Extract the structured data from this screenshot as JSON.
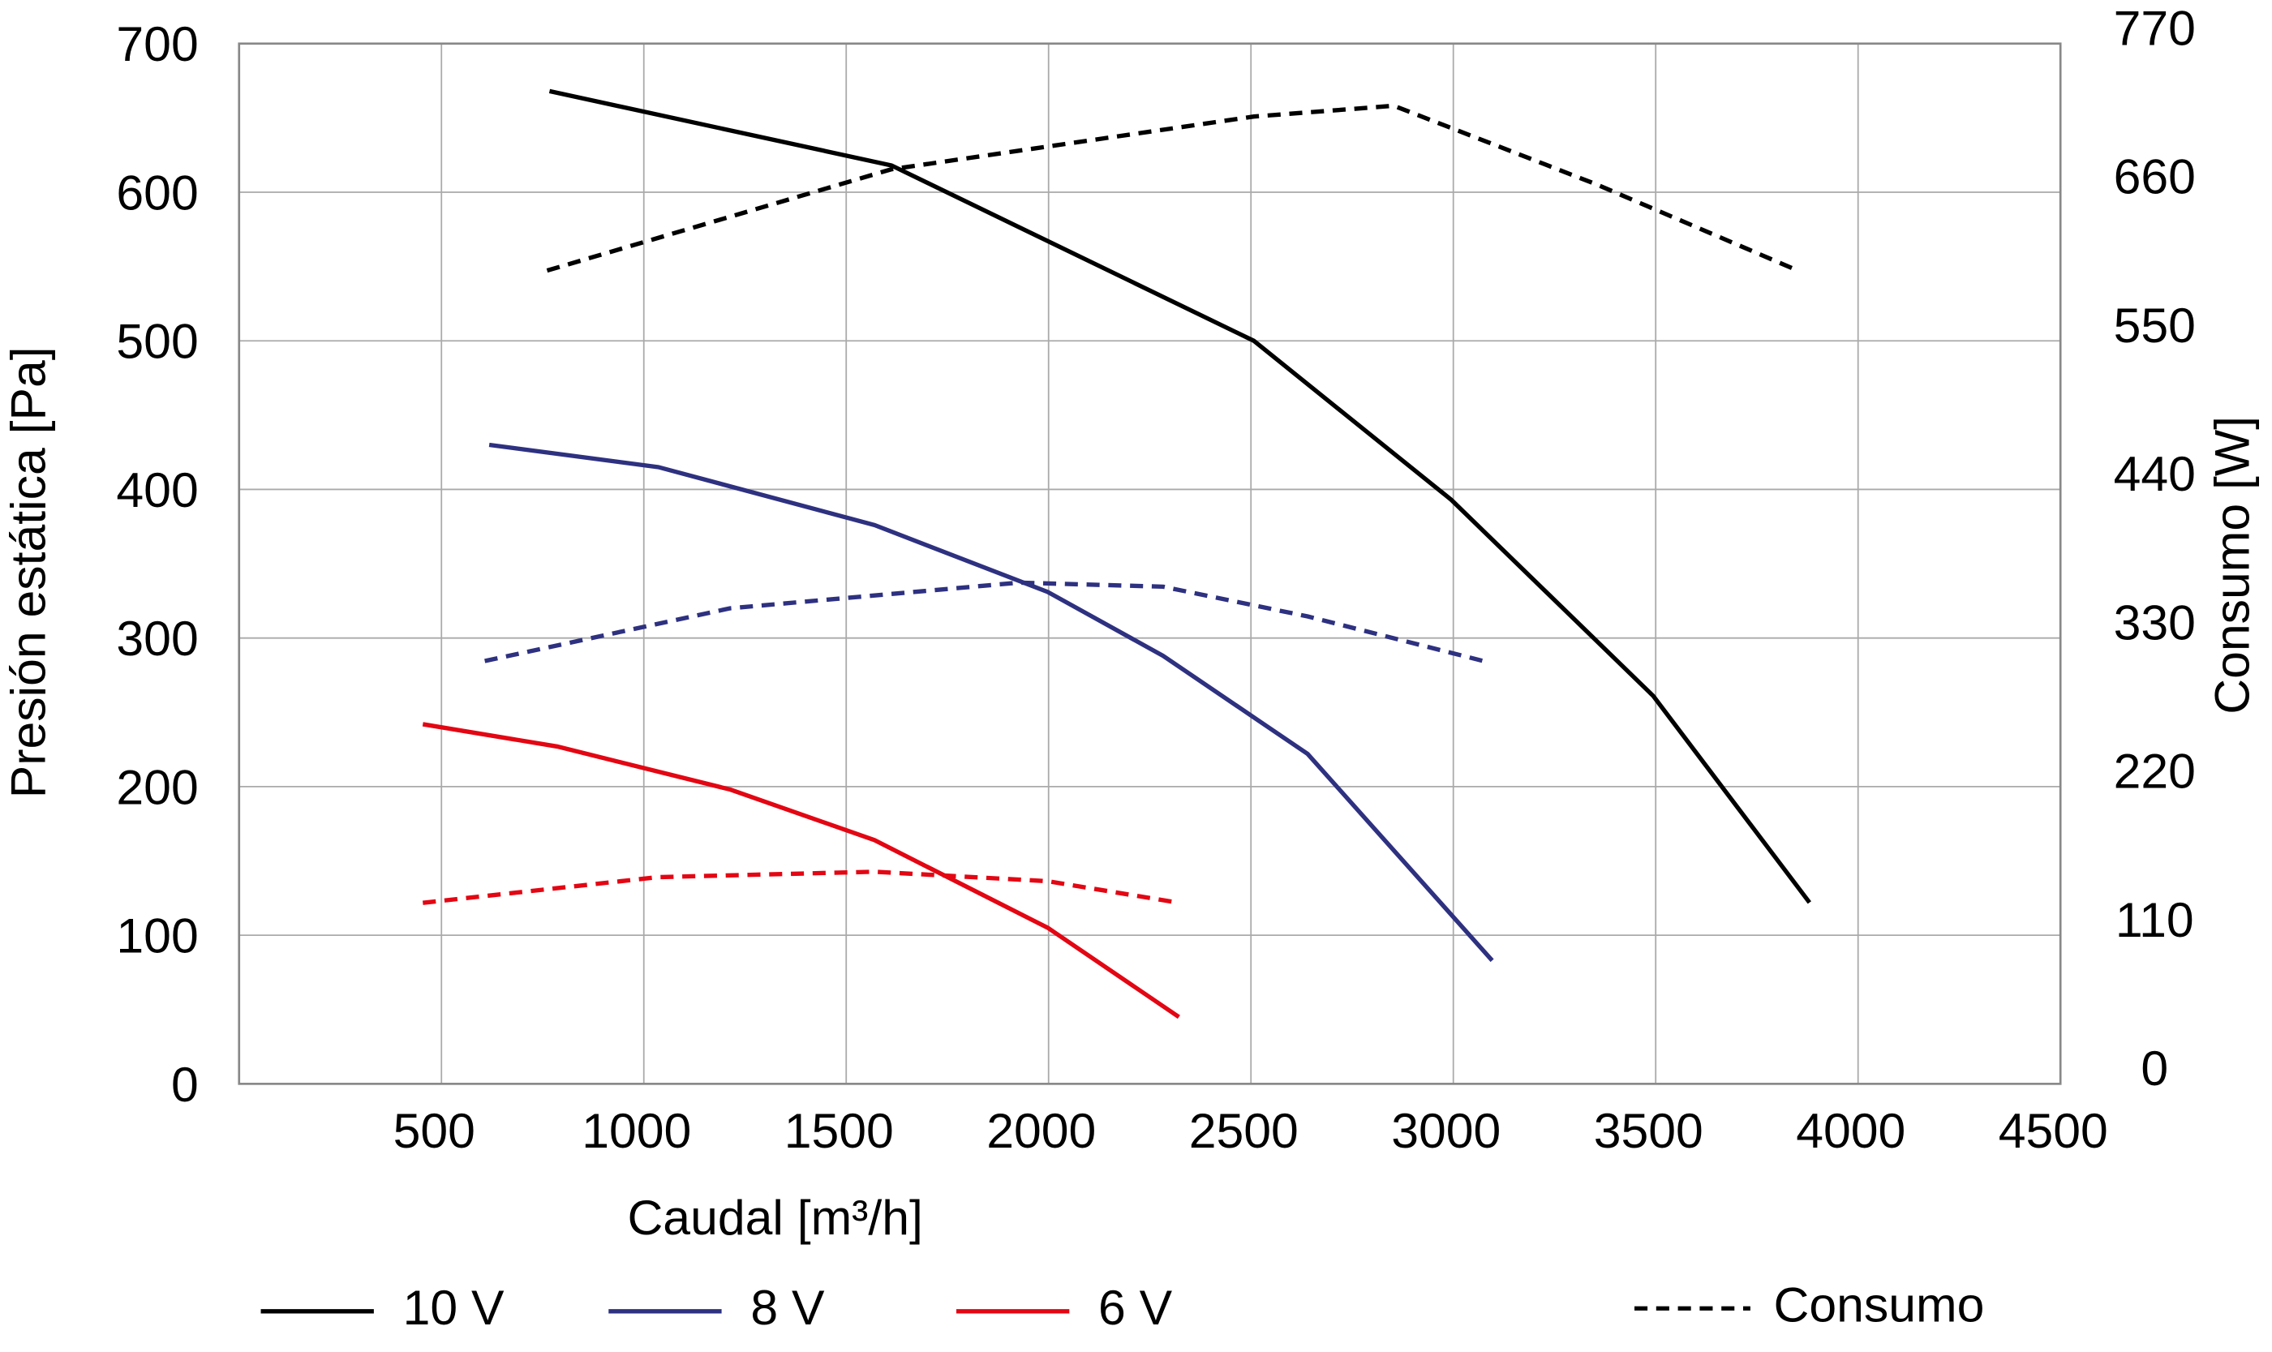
{
  "chart_data": {
    "type": "line",
    "x_label": "Caudal [m³/h]",
    "y_label": "Presión estática [Pa]",
    "y2_label": "Consumo [W]",
    "xlim": [
      0,
      4500
    ],
    "xticks": [
      500,
      1000,
      1500,
      2000,
      2500,
      3000,
      3500,
      4000,
      4500
    ],
    "ylim": [
      0,
      700
    ],
    "yticks": [
      0,
      100,
      200,
      300,
      400,
      500,
      600,
      700
    ],
    "y2lim": [
      0,
      770
    ],
    "y2ticks": [
      0,
      110,
      220,
      330,
      440,
      550,
      660,
      770
    ],
    "grid": true,
    "series": [
      {
        "name": "10 V",
        "color": "#000000",
        "x": [
          767,
          1612,
          2507,
          2995,
          3494,
          3880
        ],
        "values": [
          668,
          618,
          500,
          393,
          261,
          122
        ]
      },
      {
        "name": "8 V",
        "color": "#2e3180",
        "x": [
          618,
          1036,
          1570,
          1998,
          2283,
          2640,
          3096
        ],
        "values": [
          430,
          415,
          376,
          331,
          288,
          222,
          83
        ]
      },
      {
        "name": "6 V",
        "color": "#e30613",
        "x": [
          454,
          786,
          1214,
          1570,
          1998,
          2322
        ],
        "values": [
          242,
          227,
          198,
          164,
          105,
          45
        ]
      },
      {
        "color": "#000000",
        "axis": "y2",
        "dashed": true,
        "x": [
          761,
          1612,
          2507,
          2853,
          3352,
          3851
        ],
        "values": [
          602,
          677,
          716,
          724,
          666,
          602
        ]
      },
      {
        "color": "#2e3180",
        "axis": "y2",
        "dashed": true,
        "x": [
          607,
          1213,
          1926,
          2283,
          2640,
          3074
        ],
        "values": [
          313,
          352,
          371,
          368,
          346,
          313
        ]
      },
      {
        "color": "#e30613",
        "axis": "y2",
        "dashed": true,
        "x": [
          454,
          1035,
          1570,
          1998,
          2322
        ],
        "values": [
          134,
          153,
          157,
          150,
          134
        ]
      }
    ],
    "dashed_legend": "Consumo"
  }
}
